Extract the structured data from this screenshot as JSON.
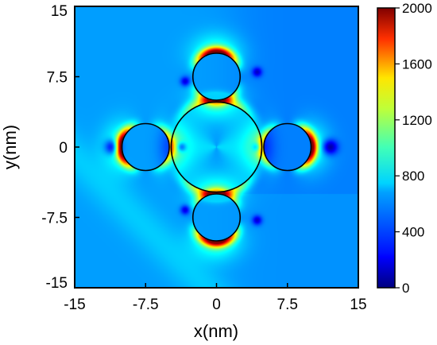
{
  "chart_data": {
    "type": "heatmap",
    "title": "",
    "xlabel": "x(nm)",
    "ylabel": "y(nm)",
    "xlim": [
      -15,
      15
    ],
    "ylim": [
      -15,
      15
    ],
    "x_ticks": [
      -15,
      -7.5,
      0,
      7.5,
      15
    ],
    "x_tick_labels": [
      "-15",
      "-7.5",
      "0",
      "7.5",
      "15"
    ],
    "y_ticks": [
      15,
      7.5,
      0,
      -7.5,
      -15
    ],
    "y_tick_labels": [
      "15",
      "7.5",
      "0",
      "-7.5",
      "-15"
    ],
    "colorbar": {
      "range": [
        0,
        2000
      ],
      "ticks": [
        0,
        400,
        800,
        1200,
        1600,
        2000
      ],
      "tick_labels": [
        "0",
        "400",
        "800",
        "1200",
        "1600",
        "2000"
      ],
      "colormap": "jet"
    },
    "circles": [
      {
        "name": "center",
        "cx": 0,
        "cy": 0,
        "r": 4.8
      },
      {
        "name": "top",
        "cx": 0,
        "cy": 7.5,
        "r": 2.5
      },
      {
        "name": "bottom",
        "cx": 0,
        "cy": -7.5,
        "r": 2.5
      },
      {
        "name": "left",
        "cx": -7.5,
        "cy": 0,
        "r": 2.5
      },
      {
        "name": "right",
        "cx": 7.5,
        "cy": 0,
        "r": 2.5
      }
    ],
    "grid": false,
    "legend": "none"
  }
}
